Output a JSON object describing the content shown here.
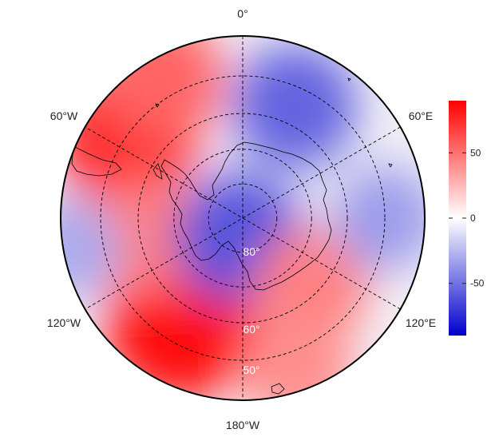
{
  "map": {
    "projection": "south-polar-stereographic",
    "longitude_labels": {
      "top": "0°",
      "upper_left": "60°W",
      "upper_right": "60°E",
      "lower_left": "120°W",
      "lower_right": "120°E",
      "bottom": "180°W"
    },
    "latitude_labels": [
      "80°",
      "60°",
      "50°"
    ],
    "field_anomalies": [
      {
        "lon": -150,
        "lat": -55,
        "value": 85
      },
      {
        "lon": -55,
        "lat": -50,
        "value": 75
      },
      {
        "lon": -100,
        "lat": -62,
        "value": 45
      },
      {
        "lon": -30,
        "lat": -45,
        "value": 55
      },
      {
        "lon": 25,
        "lat": -55,
        "value": -55
      },
      {
        "lon": -170,
        "lat": -84,
        "value": -60
      },
      {
        "lon": 135,
        "lat": -62,
        "value": 45
      },
      {
        "lon": 90,
        "lat": -50,
        "value": -35
      },
      {
        "lon": -100,
        "lat": -42,
        "value": -30
      },
      {
        "lon": 160,
        "lat": -45,
        "value": 40
      }
    ]
  },
  "colorbar": {
    "ticks": [
      "50",
      "0",
      "-50"
    ],
    "tick_values": [
      50,
      0,
      -50
    ],
    "range": [
      -90,
      90
    ],
    "colors": {
      "high": "#ff0000",
      "mid": "#ffffff",
      "low": "#0000cc"
    }
  }
}
